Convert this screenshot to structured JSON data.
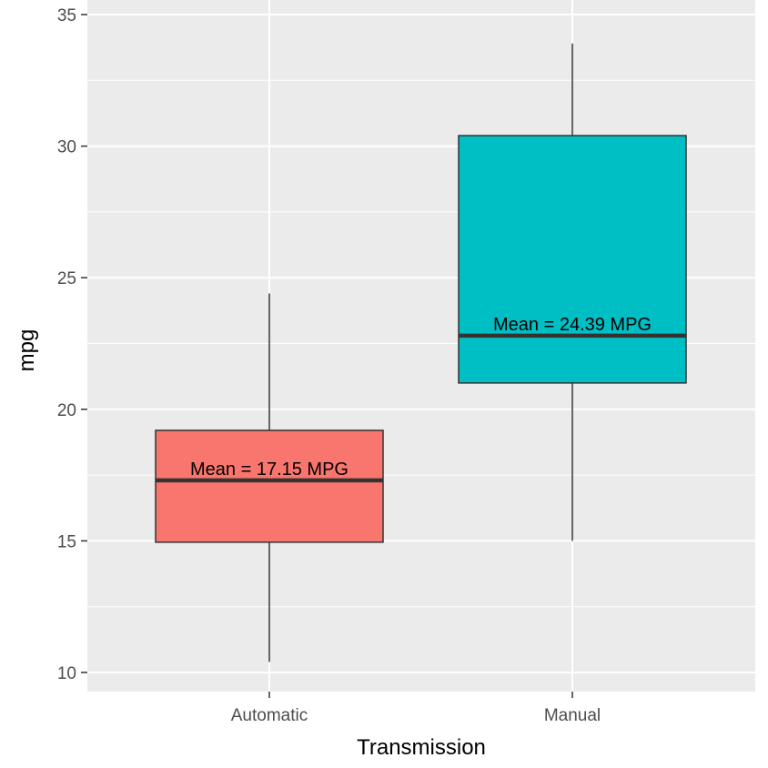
{
  "chart_data": {
    "type": "box",
    "xlabel": "Transmission",
    "ylabel": "mpg",
    "ylim": [
      9.3,
      35.0
    ],
    "yticks": [
      10,
      15,
      20,
      25,
      30,
      35
    ],
    "ytick_labels": [
      "10",
      "15",
      "20",
      "25",
      "30",
      "35"
    ],
    "categories": [
      "Automatic",
      "Manual"
    ],
    "boxes": [
      {
        "category": "Automatic",
        "min": 10.4,
        "q1": 14.95,
        "median": 17.3,
        "q3": 19.2,
        "max": 24.4,
        "fill": "#F8766D",
        "annotation": "Mean = 17.15 MPG"
      },
      {
        "category": "Manual",
        "min": 15.0,
        "q1": 21.0,
        "median": 22.8,
        "q3": 30.4,
        "max": 33.9,
        "fill": "#00BFC4",
        "annotation": "Mean = 24.39 MPG"
      }
    ],
    "grid": true,
    "panel_background": "#EBEBEB",
    "grid_color": "#FFFFFF",
    "legend": "none"
  }
}
